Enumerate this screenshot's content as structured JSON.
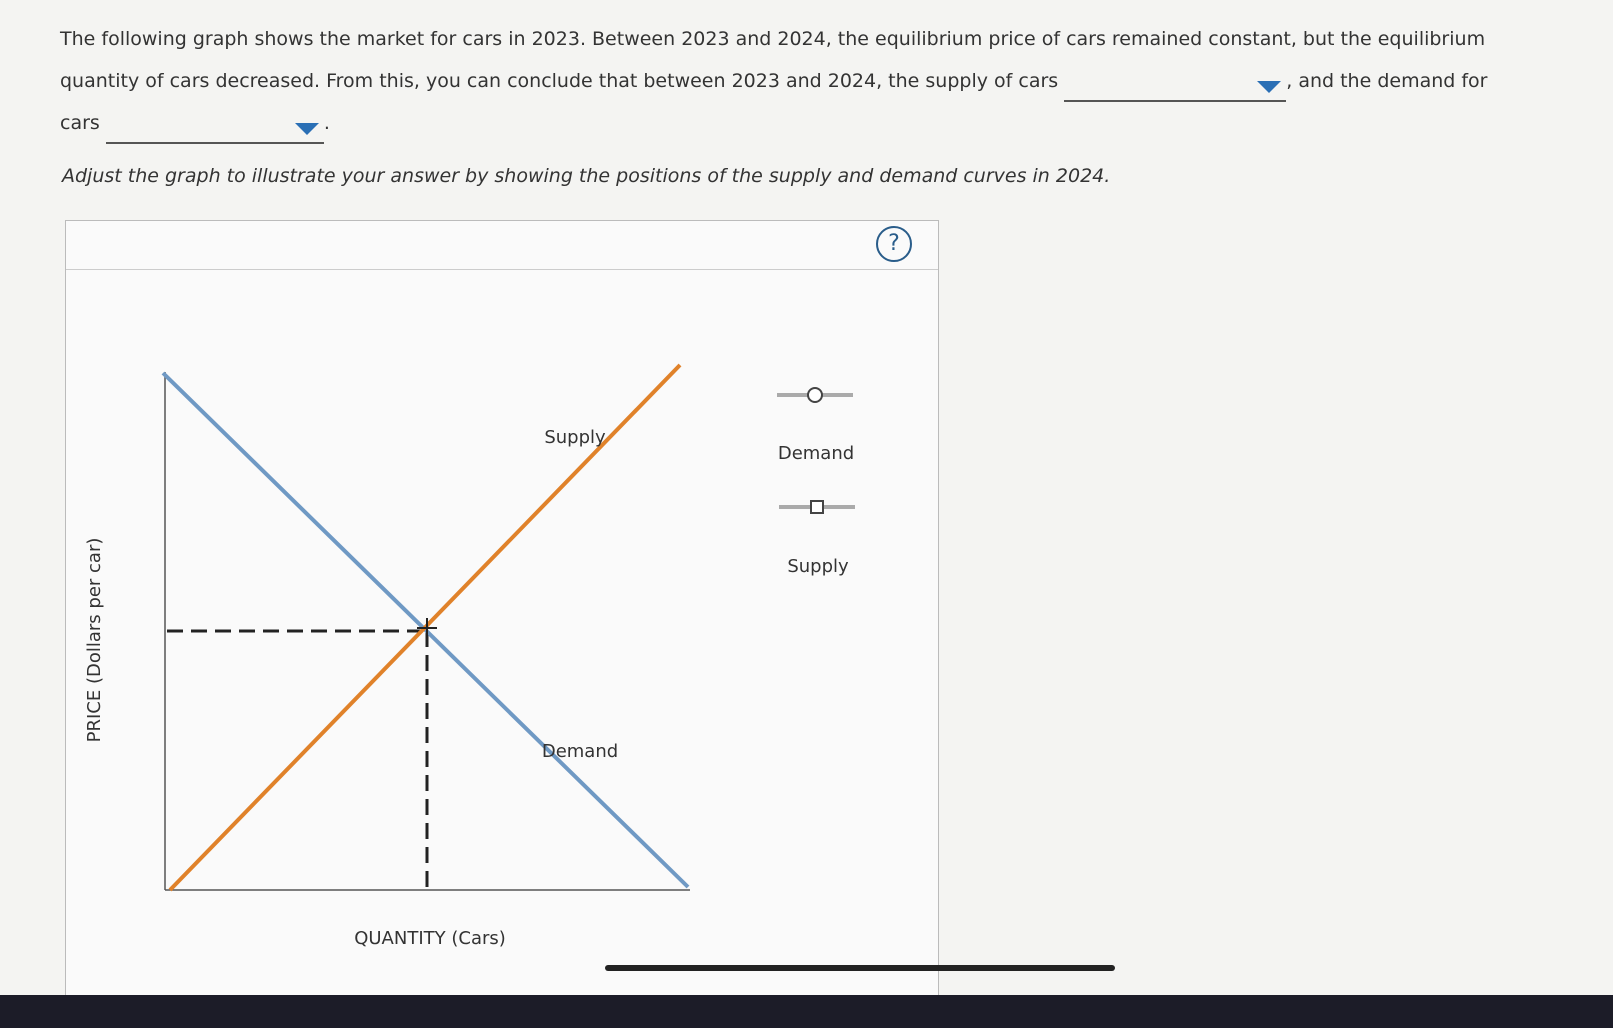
{
  "question": {
    "part_1": "The following graph shows the market for cars in 2023. Between 2023 and 2024, the equilibrium price of cars remained constant, but the equilibrium quantity of cars decreased. From this, you can conclude that between 2023 and 2024, the supply of cars",
    "part_2": ", and the demand for cars",
    "part_3": "."
  },
  "instruction": "Adjust the graph to illustrate your answer by showing the positions of the supply and demand curves in 2024.",
  "graph": {
    "help": "?",
    "y_axis_label": "PRICE (Dollars per car)",
    "x_axis_label": "QUANTITY (Cars)",
    "curve_labels": {
      "supply": "Supply",
      "demand": "Demand"
    },
    "tools": {
      "demand": "Demand",
      "supply": "Supply"
    }
  }
}
